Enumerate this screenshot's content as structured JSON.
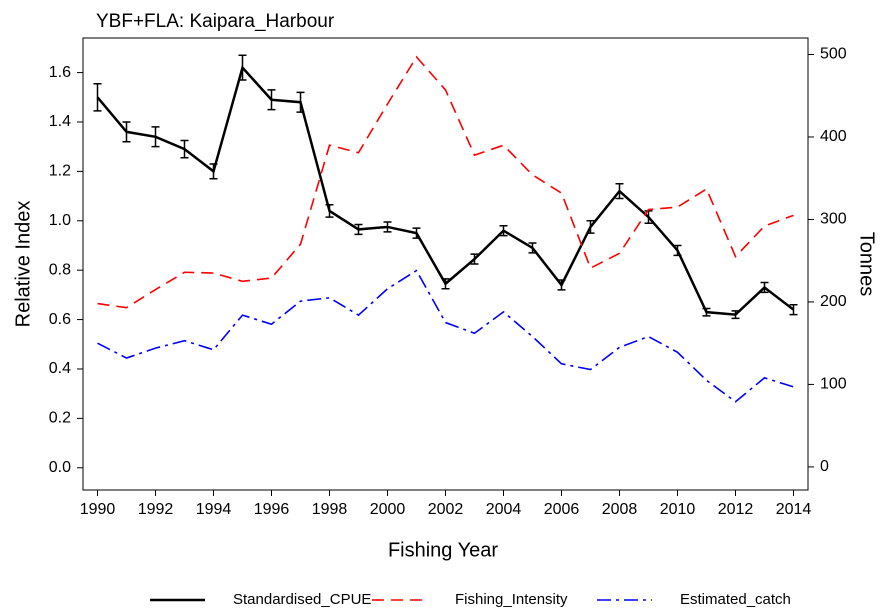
{
  "chart_data": {
    "type": "line",
    "title": "YBF+FLA: Kaipara_Harbour",
    "x_label": "Fishing Year",
    "y_label": "Relative Index",
    "y2_label": "Tonnes",
    "x": [
      1990,
      1991,
      1992,
      1993,
      1994,
      1995,
      1996,
      1997,
      1998,
      1999,
      2000,
      2001,
      2002,
      2003,
      2004,
      2005,
      2006,
      2007,
      2008,
      2009,
      2010,
      2011,
      2012,
      2013,
      2014
    ],
    "xlim": [
      1989.5,
      2014.5
    ],
    "xticks": [
      1990,
      1992,
      1994,
      1996,
      1998,
      2000,
      2002,
      2004,
      2006,
      2008,
      2010,
      2012,
      2014
    ],
    "ylim": [
      -0.09,
      1.74
    ],
    "yticks": [
      {
        "value": 0,
        "label": "0.0"
      },
      0.2,
      0.4,
      0.6,
      0.8,
      {
        "value": 1,
        "label": "1.0"
      },
      1.2,
      1.4,
      1.6
    ],
    "y2lim": [
      -28,
      520
    ],
    "y2ticks": [
      0,
      100,
      200,
      300,
      400,
      500
    ],
    "legend": "bottom",
    "series": [
      {
        "name": "Standardised_CPUE",
        "color": "#000000",
        "style": "solid",
        "values": [
          1.5,
          1.36,
          1.34,
          1.29,
          1.2,
          1.62,
          1.49,
          1.48,
          1.04,
          0.965,
          0.975,
          0.95,
          0.745,
          0.845,
          0.96,
          0.89,
          0.74,
          0.975,
          1.12,
          1.015,
          0.88,
          0.63,
          0.62,
          0.73,
          0.64
        ],
        "errors": [
          0.055,
          0.04,
          0.04,
          0.035,
          0.03,
          0.05,
          0.04,
          0.04,
          0.025,
          0.02,
          0.02,
          0.02,
          0.02,
          0.02,
          0.02,
          0.02,
          0.02,
          0.025,
          0.03,
          0.025,
          0.02,
          0.015,
          0.015,
          0.02,
          0.02
        ]
      },
      {
        "name": "Fishing_Intensity",
        "color": "#ff0000",
        "style": "dashed",
        "axis": "y2",
        "values": [
          198,
          193,
          215,
          236,
          235,
          225,
          229,
          270,
          390,
          381,
          440,
          497,
          457,
          378,
          390,
          354,
          332,
          241,
          259,
          312,
          315,
          337,
          255,
          292,
          305
        ]
      },
      {
        "name": "Estimated_catch",
        "color": "#0000ff",
        "style": "dashdot",
        "axis": "y2",
        "values": [
          150,
          132,
          144,
          153,
          142,
          184,
          173,
          201,
          205,
          184,
          216,
          238,
          175,
          162,
          188,
          158,
          125,
          118,
          145,
          158,
          139,
          105,
          79,
          108,
          97
        ]
      }
    ]
  }
}
